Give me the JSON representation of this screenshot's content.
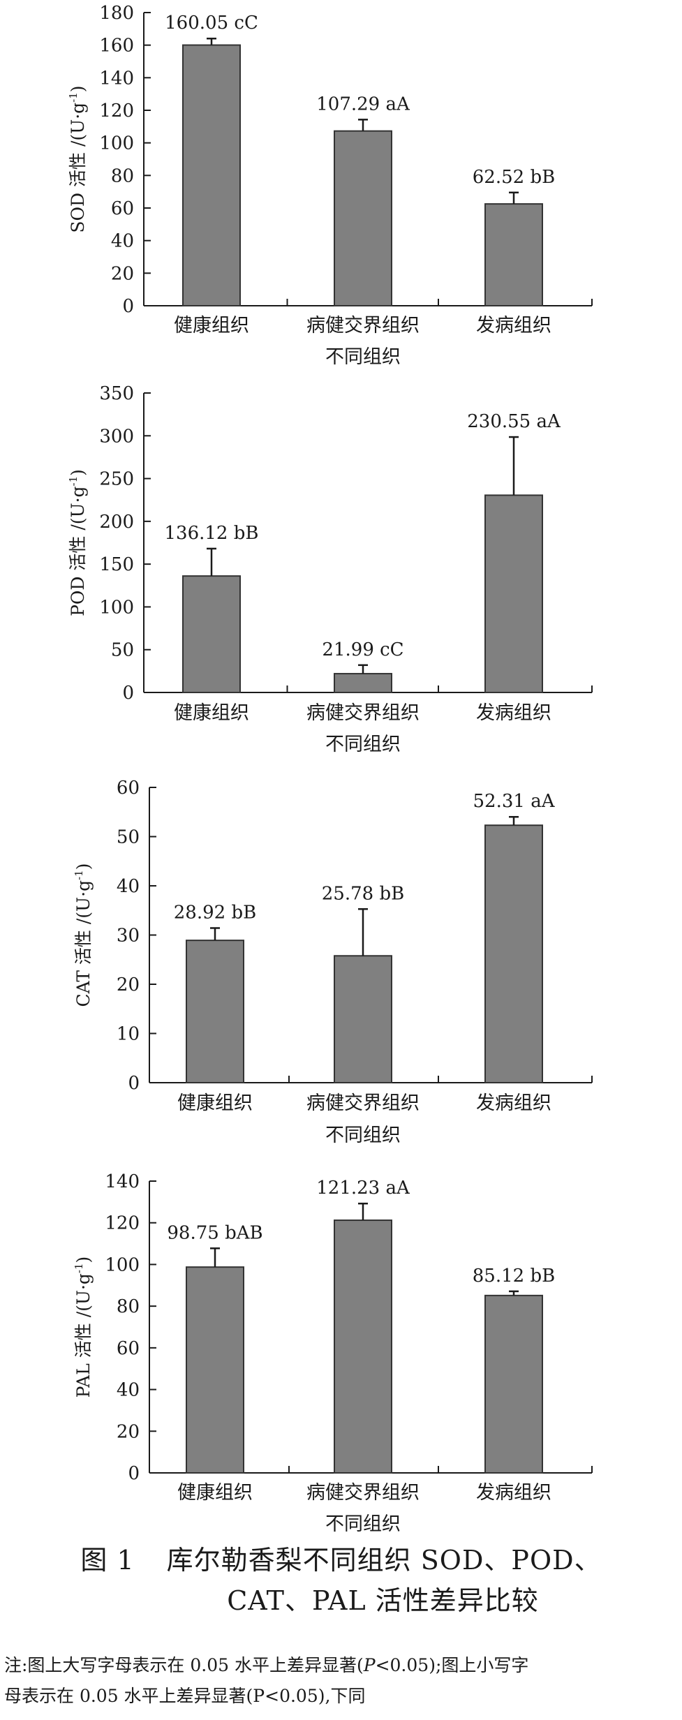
{
  "chart_data": [
    {
      "type": "bar",
      "categories": [
        "健康组织",
        "病健交界组织",
        "发病组织"
      ],
      "values": [
        160.05,
        107.29,
        62.52
      ],
      "errors": [
        4,
        7,
        7
      ],
      "data_labels": [
        "160.05 cC",
        "107.29 aA",
        "62.52 bB"
      ],
      "ylabel_main": "SOD 活性 /(U·g",
      "ylabel_sup": "-1",
      "ylabel_close": ")",
      "xlabel": "不同组织",
      "ylim": [
        0,
        180
      ],
      "yticks": [
        0,
        20,
        40,
        60,
        80,
        100,
        120,
        140,
        160,
        180
      ],
      "grid": false
    },
    {
      "type": "bar",
      "categories": [
        "健康组织",
        "病健交界组织",
        "发病组织"
      ],
      "values": [
        136.12,
        21.99,
        230.55
      ],
      "errors": [
        32,
        10,
        68
      ],
      "data_labels": [
        "136.12 bB",
        "21.99 cC",
        "230.55 aA"
      ],
      "ylabel_main": "POD 活性 /(U·g",
      "ylabel_sup": "-1",
      "ylabel_close": ")",
      "xlabel": "不同组织",
      "ylim": [
        0,
        350
      ],
      "yticks": [
        0,
        50,
        100,
        150,
        200,
        250,
        300,
        350
      ],
      "grid": false
    },
    {
      "type": "bar",
      "categories": [
        "健康组织",
        "病健交界组织",
        "发病组织"
      ],
      "values": [
        28.92,
        25.78,
        52.31
      ],
      "errors": [
        2.5,
        9.5,
        1.7
      ],
      "data_labels": [
        "28.92 bB",
        "25.78 bB",
        "52.31 aA"
      ],
      "ylabel_main": "CAT 活性 /(U·g",
      "ylabel_sup": "-1",
      "ylabel_close": ")",
      "xlabel": "不同组织",
      "ylim": [
        0,
        60
      ],
      "yticks": [
        0,
        10,
        20,
        30,
        40,
        50,
        60
      ],
      "grid": false
    },
    {
      "type": "bar",
      "categories": [
        "健康组织",
        "病健交界组织",
        "发病组织"
      ],
      "values": [
        98.75,
        121.23,
        85.12
      ],
      "errors": [
        9,
        8,
        2
      ],
      "data_labels": [
        "98.75 bAB",
        "121.23 aA",
        "85.12 bB"
      ],
      "ylabel_main": "PAL 活性 /(U·g",
      "ylabel_sup": "-1",
      "ylabel_close": ")",
      "xlabel": "不同组织",
      "ylim": [
        0,
        140
      ],
      "yticks": [
        0,
        20,
        40,
        60,
        80,
        100,
        120,
        140
      ],
      "grid": false
    }
  ],
  "colors": {
    "bar_fill": "#808080",
    "bar_stroke": "#333333",
    "axis": "#1a1a1a"
  },
  "caption": {
    "number": "图 1",
    "line1": "库尔勒香梨不同组织 SOD、POD、",
    "line2": "CAT、PAL 活性差异比较"
  },
  "note": {
    "line1_a": "注:图上大写字母表示在 0.05 水平上差异显著(",
    "line1_p": "P",
    "line1_b": "<0.05);图上小写字",
    "line2": "母表示在 0.05 水平上差异显著(P<0.05),下同"
  }
}
